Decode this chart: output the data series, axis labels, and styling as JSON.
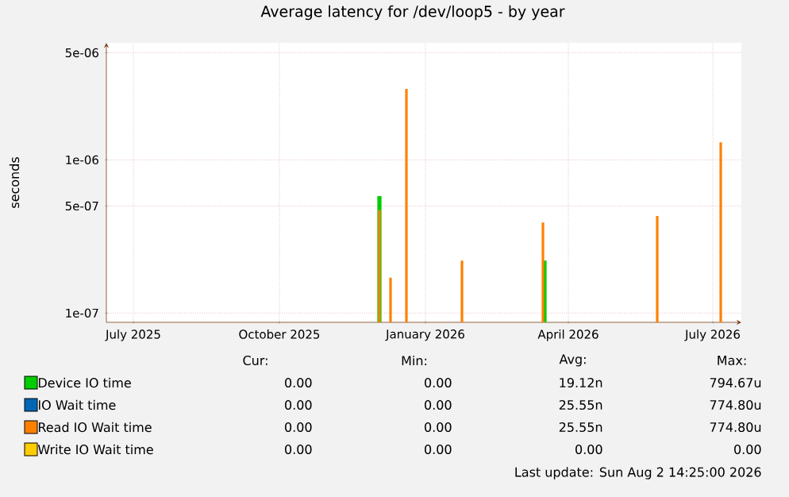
{
  "chart_data": {
    "type": "bar",
    "title": "Average latency for /dev/loop5 - by year",
    "ylabel": "seconds",
    "xlim": [
      "2025-06-28",
      "2026-08-02"
    ],
    "ylim": [
      8.7e-08,
      5.8e-06
    ],
    "log": true,
    "grid": true,
    "legend": "bottom",
    "xticks": [
      {
        "value": "2025-07-15",
        "label": "July 2025"
      },
      {
        "value": "2025-10-15",
        "label": "October 2025"
      },
      {
        "value": "2026-01-15",
        "label": "January 2026"
      },
      {
        "value": "2026-04-15",
        "label": "April 2026"
      },
      {
        "value": "2026-07-15",
        "label": "July 2026"
      }
    ],
    "yticks": [
      {
        "value": 1e-07,
        "label": "1e-07"
      },
      {
        "value": 5e-07,
        "label": "5e-07"
      },
      {
        "value": 1e-06,
        "label": "1e-06"
      },
      {
        "value": 5e-06,
        "label": "5e-06"
      }
    ],
    "series": [
      {
        "name": "Device IO time",
        "color": "#00cc00",
        "x": [
          "2025-12-17",
          "2026-03-31"
        ],
        "values": [
          5.8e-07,
          2.2e-07
        ]
      },
      {
        "name": "IO Wait time",
        "color": "#0066b3"
      },
      {
        "name": "Read IO Wait time",
        "color": "#ff8000",
        "x": [
          "2025-12-17",
          "2025-12-24",
          "2026-01-03",
          "2026-02-07",
          "2026-03-30",
          "2026-06-10",
          "2026-07-20"
        ],
        "values": [
          4.7e-07,
          1.7e-07,
          2.9e-06,
          2.2e-07,
          3.9e-07,
          4.3e-07,
          1.3e-06
        ]
      },
      {
        "name": "Write IO Wait time",
        "color": "#ffcc00"
      }
    ],
    "annotations": [
      "Cur:",
      "Min:",
      "Avg:",
      "Max:",
      "0.00",
      "0.00",
      "19.12n",
      "794.67u",
      "0.00",
      "0.00",
      "25.55n",
      "774.80u",
      "0.00",
      "0.00",
      "25.55n",
      "774.80u",
      "0.00",
      "0.00",
      "0.00",
      "0.00",
      "Last update: Sun Aug  2 14:25:00 2026"
    ]
  }
}
